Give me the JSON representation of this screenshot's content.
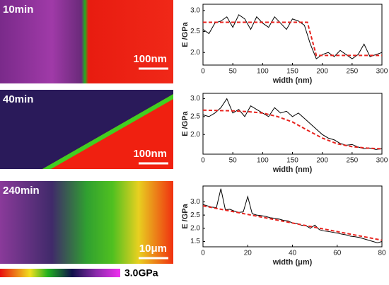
{
  "images": [
    {
      "label": "10min",
      "scale": "100nm"
    },
    {
      "label": "40min",
      "scale": "100nm"
    },
    {
      "label": "240min",
      "scale": "10μm"
    }
  ],
  "colorbar": {
    "label": "3.0GPa"
  },
  "chart_data": [
    {
      "type": "line",
      "xlabel": "width (nm)",
      "ylabel": "E /GPa",
      "xlim": [
        0,
        300
      ],
      "xticks": [
        0,
        50,
        100,
        150,
        200,
        250,
        300
      ],
      "ylim": [
        1.7,
        3.15
      ],
      "yticks": [
        {
          "value": 2,
          "label": "2.0"
        },
        2.5,
        {
          "value": 3,
          "label": "3.0"
        }
      ],
      "series": [
        {
          "color": "#000000",
          "x": [
            0,
            10,
            20,
            30,
            40,
            50,
            60,
            70,
            80,
            90,
            100,
            110,
            120,
            130,
            140,
            150,
            160,
            170,
            180,
            190,
            200,
            210,
            220,
            230,
            240,
            250,
            260,
            270,
            280,
            290,
            300
          ],
          "values": [
            2.55,
            2.45,
            2.7,
            2.75,
            2.85,
            2.6,
            2.9,
            2.8,
            2.55,
            2.85,
            2.7,
            2.6,
            2.85,
            2.7,
            2.55,
            2.8,
            2.75,
            2.65,
            2.2,
            1.85,
            1.95,
            2.0,
            1.9,
            2.05,
            1.95,
            1.85,
            1.95,
            2.2,
            1.9,
            1.95,
            2.0
          ]
        },
        {
          "color": "#e8231e",
          "dashed": true,
          "x": [
            0,
            175,
            190,
            300
          ],
          "values": [
            2.72,
            2.72,
            1.93,
            1.93
          ]
        }
      ]
    },
    {
      "type": "line",
      "xlabel": "width (nm)",
      "ylabel": "E /GPa",
      "xlim": [
        0,
        300
      ],
      "xticks": [
        0,
        50,
        100,
        150,
        200,
        250,
        300
      ],
      "ylim": [
        1.45,
        3.15
      ],
      "yticks": [
        {
          "value": 2,
          "label": "2.0"
        },
        2.5,
        {
          "value": 3,
          "label": "3.0"
        }
      ],
      "series": [
        {
          "color": "#000000",
          "x": [
            0,
            10,
            20,
            30,
            40,
            50,
            60,
            70,
            80,
            90,
            100,
            110,
            120,
            130,
            140,
            150,
            160,
            170,
            180,
            190,
            200,
            210,
            220,
            230,
            240,
            250,
            260,
            270,
            280,
            290,
            300
          ],
          "values": [
            2.55,
            2.5,
            2.6,
            2.75,
            3.0,
            2.6,
            2.7,
            2.5,
            2.8,
            2.7,
            2.6,
            2.5,
            2.75,
            2.6,
            2.65,
            2.5,
            2.6,
            2.45,
            2.3,
            2.15,
            2.0,
            1.9,
            1.85,
            1.75,
            1.7,
            1.72,
            1.65,
            1.6,
            1.62,
            1.58,
            1.6
          ]
        },
        {
          "color": "#e8231e",
          "dashed": true,
          "x": [
            0,
            25,
            50,
            75,
            100,
            125,
            150,
            175,
            200,
            225,
            250,
            275,
            300
          ],
          "values": [
            2.68,
            2.67,
            2.66,
            2.64,
            2.6,
            2.5,
            2.35,
            2.12,
            1.9,
            1.74,
            1.66,
            1.62,
            1.6
          ]
        }
      ]
    },
    {
      "type": "line",
      "xlabel": "width (μm)",
      "ylabel": "E /GPa",
      "xlim": [
        0,
        80
      ],
      "xticks": [
        0,
        20,
        40,
        60,
        80
      ],
      "ylim": [
        1.3,
        3.6
      ],
      "yticks": [
        1.5,
        {
          "value": 2,
          "label": "2.0"
        },
        2.5,
        {
          "value": 3,
          "label": "3.0"
        }
      ],
      "series": [
        {
          "color": "#000000",
          "x": [
            0,
            2,
            4,
            6,
            8,
            10,
            12,
            14,
            16,
            18,
            20,
            22,
            24,
            26,
            28,
            30,
            32,
            34,
            36,
            38,
            40,
            42,
            44,
            46,
            48,
            50,
            52,
            54,
            56,
            58,
            60,
            62,
            64,
            66,
            68,
            70,
            72,
            74,
            76,
            78,
            80
          ],
          "values": [
            2.9,
            2.85,
            2.8,
            2.78,
            3.5,
            2.7,
            2.72,
            2.65,
            2.6,
            2.62,
            3.2,
            2.55,
            2.5,
            2.48,
            2.45,
            2.4,
            2.38,
            2.35,
            2.3,
            2.28,
            2.2,
            2.18,
            2.12,
            2.1,
            2.0,
            2.12,
            1.95,
            1.9,
            1.88,
            1.85,
            1.82,
            1.78,
            1.75,
            1.7,
            1.68,
            1.65,
            1.6,
            1.55,
            1.5,
            1.45,
            1.5
          ]
        },
        {
          "color": "#e8231e",
          "dashed": true,
          "x": [
            0,
            80
          ],
          "values": [
            2.85,
            1.55
          ]
        }
      ]
    }
  ]
}
